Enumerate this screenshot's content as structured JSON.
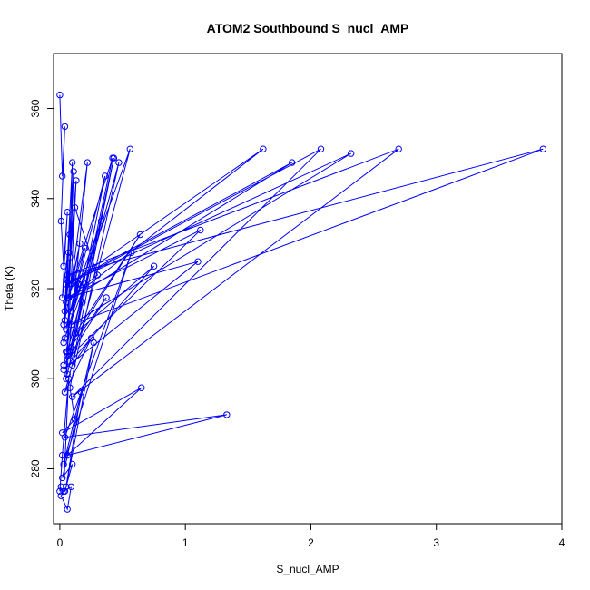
{
  "chart_data": {
    "type": "line",
    "title": "ATOM2 Southbound S_nucl_AMP",
    "xlabel": "S_nucl_AMP",
    "ylabel": "Theta (K)",
    "xlim": [
      0,
      4
    ],
    "ylim": [
      270,
      370
    ],
    "xticks": [
      "0",
      "1",
      "2",
      "3",
      "4"
    ],
    "yticks": [
      "280",
      "300",
      "320",
      "340",
      "360"
    ],
    "grid": false,
    "legend": "none",
    "markers": "open-circle",
    "color": "#0000ff",
    "series": [
      {
        "x": [
          0.0,
          0.02,
          0.04,
          0.01,
          0.03,
          0.06,
          0.02,
          0.08,
          0.05,
          0.03,
          0.07,
          0.04,
          0.1,
          0.06,
          0.13,
          0.08,
          0.03,
          0.11,
          0.05,
          0.22,
          0.09,
          0.16,
          0.04,
          0.12,
          0.3,
          0.07,
          0.2,
          0.05,
          0.14,
          0.36,
          0.08,
          0.18,
          0.06,
          0.43,
          0.1,
          0.25,
          0.04,
          0.56,
          0.09,
          0.15,
          0.05,
          0.64,
          0.12,
          0.75,
          0.03,
          1.1,
          0.06,
          1.12,
          0.08,
          0.42,
          0.05,
          1.62,
          0.07,
          2.08,
          0.1,
          2.7,
          0.06,
          3.85,
          0.09,
          2.32,
          0.05,
          1.85,
          0.11,
          0.33,
          0.04,
          0.2,
          0.06,
          0.37,
          0.03,
          0.47,
          0.08,
          0.12,
          0.02,
          0.65,
          0.06,
          1.33,
          0.04,
          0.57,
          0.03,
          0.17,
          0.05,
          0.27,
          0.02,
          0.1,
          0.04,
          0.01,
          0.06,
          0.09,
          0.03,
          0.07,
          0.02,
          0.0,
          0.01
        ],
        "y": [
          363,
          345,
          356,
          335,
          325,
          337,
          318,
          332,
          322,
          308,
          328,
          315,
          348,
          305,
          344,
          327,
          312,
          346,
          300,
          348,
          321,
          330,
          313,
          338,
          323,
          318,
          329,
          311,
          321,
          345,
          306,
          317,
          301,
          349,
          303,
          309,
          297,
          351,
          315,
          321,
          306,
          332,
          310,
          325,
          302,
          326,
          318,
          333,
          305,
          349,
          317,
          351,
          321,
          351,
          296,
          351,
          323,
          351,
          312,
          350,
          321,
          348,
          318,
          335,
          309,
          321,
          306,
          318,
          303,
          348,
          298,
          291,
          288,
          298,
          283,
          292,
          287,
          328,
          281,
          297,
          276,
          308,
          278,
          281,
          275,
          274,
          271,
          276,
          275,
          300,
          283,
          275,
          276
        ]
      }
    ]
  }
}
